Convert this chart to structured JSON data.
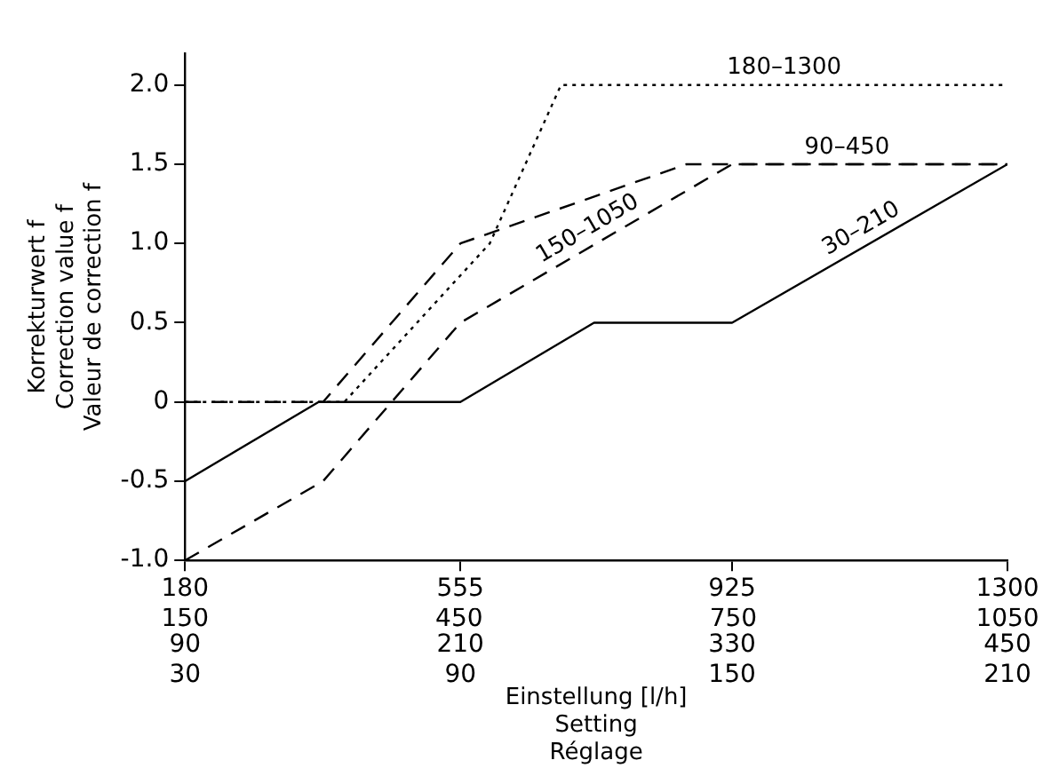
{
  "chart_data": {
    "type": "line",
    "xlabel": "Einstellung [l/h]\nSetting\nRéglage",
    "ylabel": "Korrekturwert f\nCorrection value f\nValeur de correction f",
    "xlim": [
      180,
      1300
    ],
    "xticks": [
      180,
      555,
      925,
      1300
    ],
    "x2lim": [
      150,
      1050
    ],
    "x2ticks": [
      150,
      450,
      750,
      1050
    ],
    "annotations": [
      "90 210 330 450",
      "30 90 150 210"
    ],
    "ylim": [
      -1,
      2.2
    ],
    "yticks": [
      {
        "value": -1,
        "label": "-1.0"
      },
      {
        "value": -0.5,
        "label": "-0.5"
      },
      0,
      0.5,
      {
        "value": 1,
        "label": "1.0"
      },
      1.5,
      {
        "value": 2,
        "label": "2.0"
      }
    ],
    "grid": false,
    "legend": false,
    "marker": "none",
    "series": [
      {
        "name": "30–210",
        "color": "#000000",
        "line_style": "solid",
        "x": [
          180,
          362,
          555,
          737,
          925,
          1300
        ],
        "values": [
          -0.5,
          0,
          0,
          0.5,
          0.5,
          1.5
        ]
      },
      {
        "name": "150–1050",
        "color": "#000000",
        "line_style": "dashed",
        "x": [
          180,
          368,
          555,
          925,
          1300
        ],
        "values": [
          -1,
          -0.5,
          0.5,
          1.5,
          1.5
        ]
      },
      {
        "name": "90–450",
        "color": "#000000",
        "line_style": "dashed",
        "x": [
          180,
          368,
          555,
          863,
          1300
        ],
        "values": [
          0,
          0,
          1,
          1.5,
          1.5
        ]
      },
      {
        "name": "180–1300",
        "color": "#000000",
        "line_style": "dotted",
        "x": [
          180,
          397,
          595,
          692,
          1300
        ],
        "values": [
          0,
          0,
          1,
          2,
          2
        ]
      }
    ]
  }
}
